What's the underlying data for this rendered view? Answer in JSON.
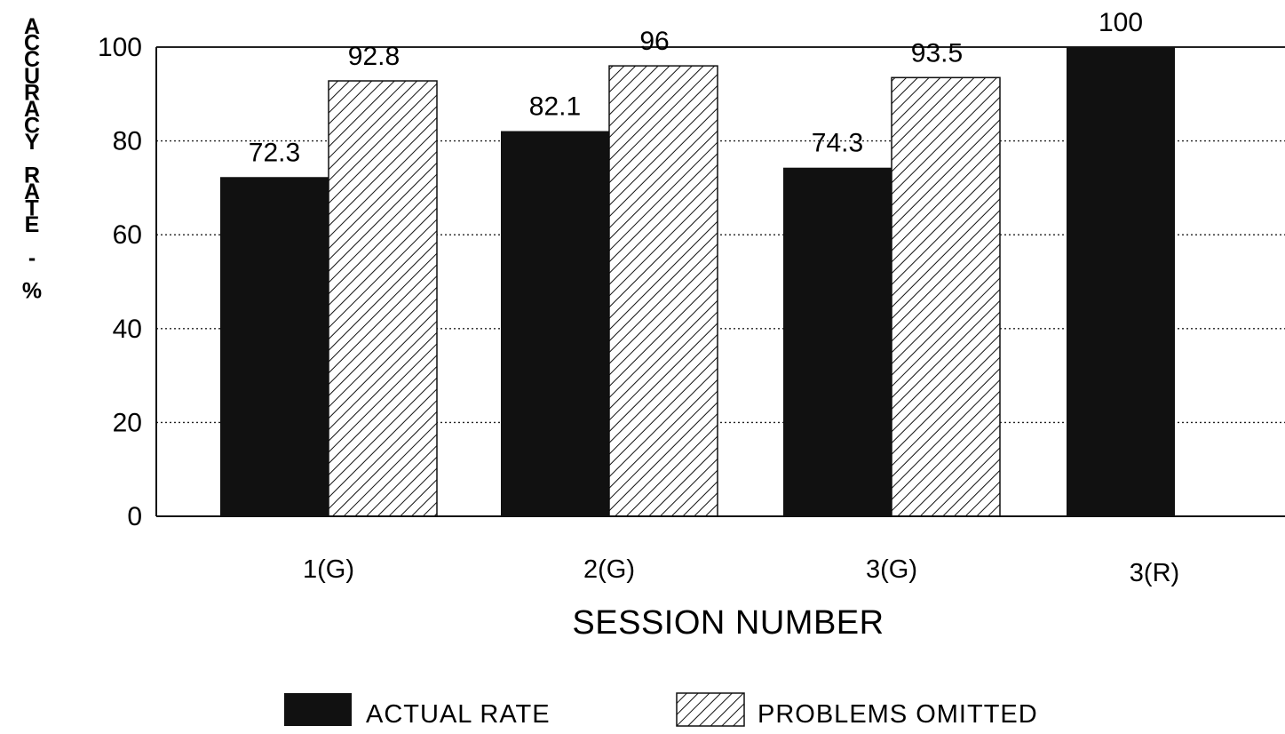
{
  "chart_data": {
    "type": "bar",
    "categories": [
      "1(G)",
      "2(G)",
      "3(G)",
      "3(R)"
    ],
    "series": [
      {
        "name": "ACTUAL RATE",
        "values": [
          72.3,
          82.1,
          74.3,
          100
        ],
        "fill": "solid",
        "color": "#111111"
      },
      {
        "name": "PROBLEMS OMITTED",
        "values": [
          92.8,
          96,
          93.5,
          null
        ],
        "fill": "hatched",
        "color": "#111111"
      }
    ],
    "data_labels": [
      [
        "72.3",
        "82.1",
        "74.3",
        "100"
      ],
      [
        "92.8",
        "96",
        "93.5",
        ""
      ]
    ],
    "title": "",
    "xlabel": "SESSION NUMBER",
    "ylabel": "ACCURACY RATE - %",
    "ylabel_lines": [
      "A",
      "C",
      "C",
      "U",
      "R",
      "A",
      "C",
      "Y",
      "",
      "R",
      "A",
      "T",
      "E",
      "",
      "-",
      "",
      "%"
    ],
    "ylim": [
      0,
      100
    ],
    "yticks": [
      0,
      20,
      40,
      60,
      80,
      100
    ],
    "grid": "horizontal-dotted",
    "legend": "bottom-center"
  }
}
